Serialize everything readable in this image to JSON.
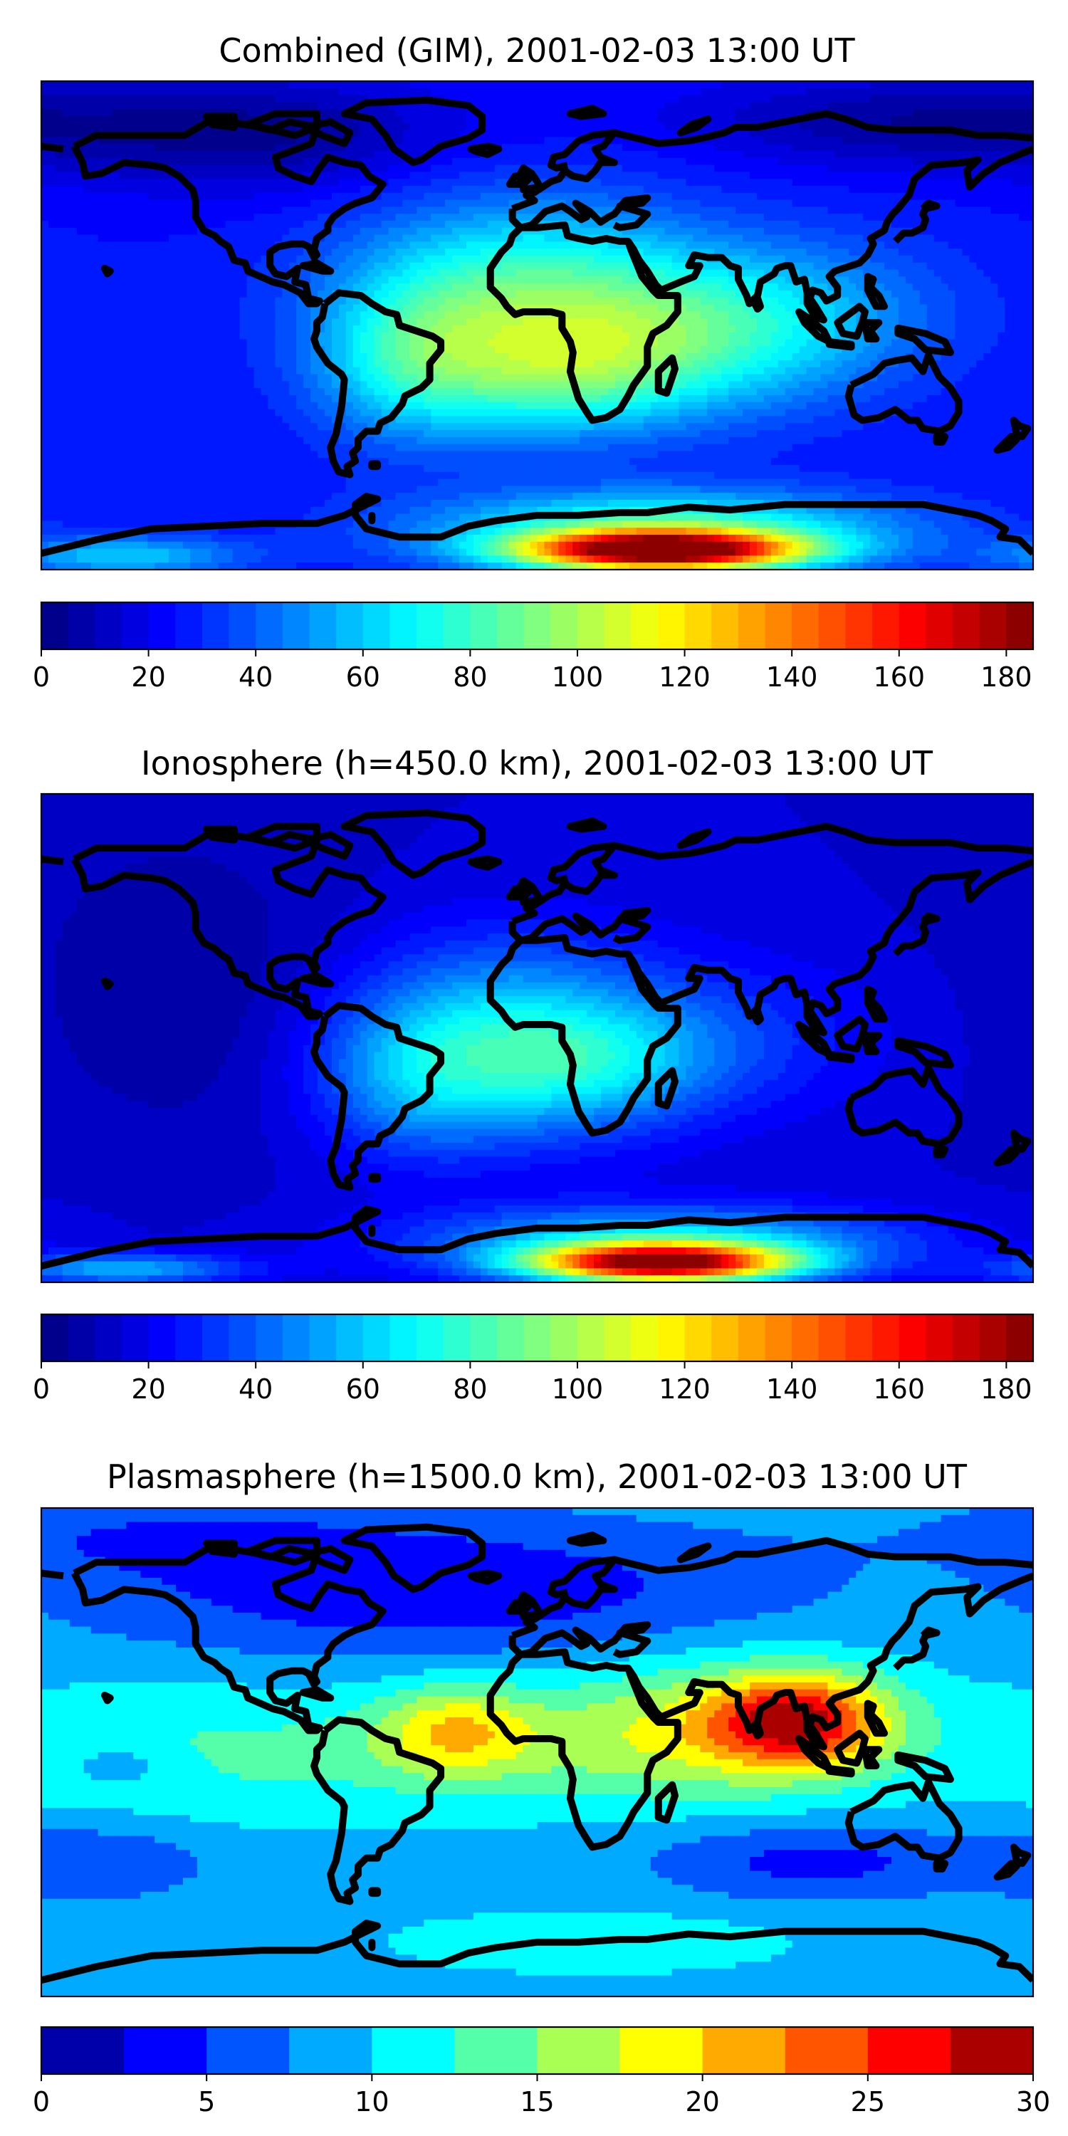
{
  "figure": {
    "coastline_color": "#000000",
    "panels": [
      {
        "title": "Combined (GIM), 2001-02-03 13:00 UT",
        "colorbar": {
          "vmin": 0,
          "vmax": 185,
          "levels": 37,
          "ticks": [
            "0",
            "20",
            "40",
            "60",
            "80",
            "100",
            "120",
            "140",
            "160",
            "180"
          ],
          "tick_values": [
            0,
            20,
            40,
            60,
            80,
            100,
            120,
            140,
            160,
            180
          ]
        },
        "field": {
          "background": 25,
          "blobs": [
            {
              "lon": -5,
              "lat": 10,
              "amp": 55,
              "slon": 45,
              "slat": 25
            },
            {
              "lon": 55,
              "lat": -5,
              "amp": 35,
              "slon": 40,
              "slat": 20
            },
            {
              "lon": 100,
              "lat": 5,
              "amp": 20,
              "slon": 40,
              "slat": 20
            },
            {
              "lon": -45,
              "lat": -15,
              "amp": 35,
              "slon": 25,
              "slat": 20
            },
            {
              "lon": 10,
              "lat": -20,
              "amp": 30,
              "slon": 30,
              "slat": 15
            },
            {
              "lon": 45,
              "lat": -83,
              "amp": 160,
              "slon": 35,
              "slat": 5
            },
            {
              "lon": 45,
              "lat": -75,
              "amp": 55,
              "slon": 60,
              "slat": 10
            },
            {
              "lon": -150,
              "lat": -85,
              "amp": 35,
              "slon": 30,
              "slat": 5
            },
            {
              "lon": -100,
              "lat": 70,
              "amp": -20,
              "slon": 50,
              "slat": 15
            },
            {
              "lon": 140,
              "lat": 75,
              "amp": -20,
              "slon": 60,
              "slat": 12
            }
          ]
        }
      },
      {
        "title": "Ionosphere  (h=450.0 km), 2001-02-03 13:00 UT",
        "colorbar": {
          "vmin": 0,
          "vmax": 185,
          "levels": 37,
          "ticks": [
            "0",
            "20",
            "40",
            "60",
            "80",
            "100",
            "120",
            "140",
            "160",
            "180"
          ],
          "tick_values": [
            0,
            20,
            40,
            60,
            80,
            100,
            120,
            140,
            160,
            180
          ]
        },
        "field": {
          "background": 15,
          "blobs": [
            {
              "lon": -10,
              "lat": 0,
              "amp": 45,
              "slon": 40,
              "slat": 25
            },
            {
              "lon": 20,
              "lat": -10,
              "amp": 25,
              "slon": 30,
              "slat": 15
            },
            {
              "lon": -45,
              "lat": -15,
              "amp": 25,
              "slon": 25,
              "slat": 20
            },
            {
              "lon": 70,
              "lat": 0,
              "amp": 15,
              "slon": 40,
              "slat": 20
            },
            {
              "lon": 45,
              "lat": -83,
              "amp": 155,
              "slon": 33,
              "slat": 5
            },
            {
              "lon": 45,
              "lat": -75,
              "amp": 50,
              "slon": 60,
              "slat": 9
            },
            {
              "lon": -150,
              "lat": -85,
              "amp": 40,
              "slon": 30,
              "slat": 4
            },
            {
              "lon": -130,
              "lat": 20,
              "amp": -10,
              "slon": 40,
              "slat": 40
            }
          ]
        }
      },
      {
        "title": "Plasmasphere (h=1500.0 km), 2001-02-03 13:00 UT",
        "colorbar": {
          "vmin": 0,
          "vmax": 30,
          "levels": 12,
          "ticks": [
            "0",
            "5",
            "10",
            "15",
            "20",
            "25",
            "30"
          ],
          "tick_values": [
            0,
            5,
            10,
            15,
            20,
            25,
            30
          ]
        },
        "field": {
          "background": 9,
          "blobs": [
            {
              "lon": 95,
              "lat": 12,
              "amp": 15,
              "slon": 22,
              "slat": 12
            },
            {
              "lon": 60,
              "lat": 10,
              "amp": 7,
              "slon": 45,
              "slat": 18
            },
            {
              "lon": -30,
              "lat": 8,
              "amp": 8,
              "slon": 20,
              "slat": 12
            },
            {
              "lon": -130,
              "lat": 0,
              "amp": 3,
              "slon": 60,
              "slat": 20
            },
            {
              "lon": 0,
              "lat": 0,
              "amp": 3,
              "slon": 80,
              "slat": 15
            },
            {
              "lon": -40,
              "lat": 60,
              "amp": -6,
              "slon": 90,
              "slat": 18
            },
            {
              "lon": 100,
              "lat": -40,
              "amp": -5,
              "slon": 40,
              "slat": 10
            },
            {
              "lon": -160,
              "lat": -40,
              "amp": -4,
              "slon": 30,
              "slat": 10
            },
            {
              "lon": -140,
              "lat": 80,
              "amp": -3,
              "slon": 60,
              "slat": 10
            },
            {
              "lon": 20,
              "lat": -70,
              "amp": 3,
              "slon": 50,
              "slat": 8
            },
            {
              "lon": -150,
              "lat": -5,
              "amp": -3,
              "slon": 15,
              "slat": 6
            }
          ]
        }
      }
    ]
  }
}
